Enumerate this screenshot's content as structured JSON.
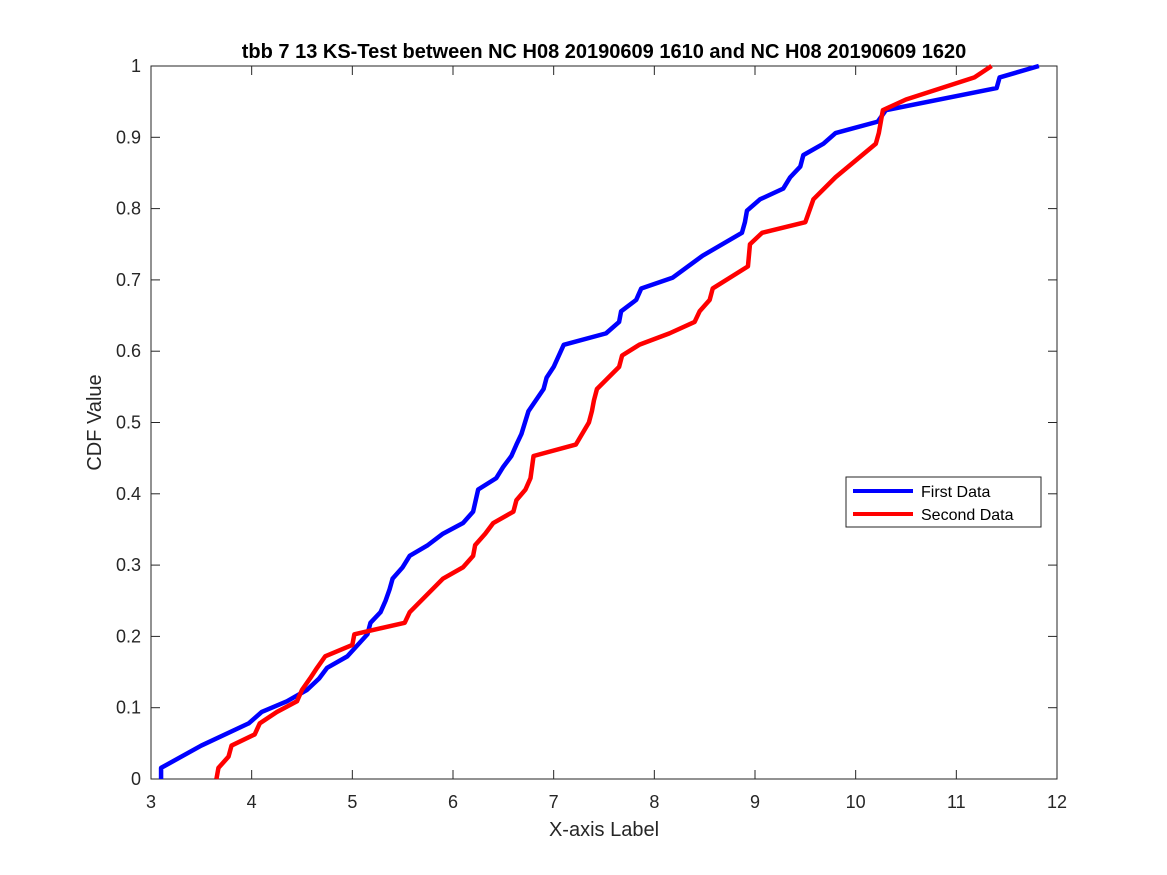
{
  "chart_data": {
    "type": "line",
    "title": "tbb 7 13 KS-Test between NC H08 20190609 1610 and NC H08 20190609 1620",
    "xlabel": "X-axis Label",
    "ylabel": "CDF Value",
    "xlim": [
      3,
      12
    ],
    "ylim": [
      0,
      1
    ],
    "xticks": [
      "3",
      "4",
      "5",
      "6",
      "7",
      "8",
      "9",
      "10",
      "11",
      "12"
    ],
    "yticks": [
      "0",
      "0.1",
      "0.2",
      "0.3",
      "0.4",
      "0.5",
      "0.6",
      "0.7",
      "0.8",
      "0.9",
      "1"
    ],
    "grid": false,
    "legend_position": "right",
    "series": [
      {
        "name": "First Data",
        "color": "#0000ff",
        "points": [
          [
            3.1,
            0.0
          ],
          [
            3.1,
            0.0156
          ],
          [
            3.5,
            0.0469
          ],
          [
            3.97,
            0.078
          ],
          [
            4.1,
            0.094
          ],
          [
            4.35,
            0.109
          ],
          [
            4.55,
            0.125
          ],
          [
            4.67,
            0.141
          ],
          [
            4.75,
            0.156
          ],
          [
            4.95,
            0.172
          ],
          [
            5.15,
            0.203
          ],
          [
            5.18,
            0.219
          ],
          [
            5.28,
            0.234
          ],
          [
            5.33,
            0.25
          ],
          [
            5.37,
            0.266
          ],
          [
            5.4,
            0.281
          ],
          [
            5.5,
            0.297
          ],
          [
            5.57,
            0.313
          ],
          [
            5.75,
            0.328
          ],
          [
            5.9,
            0.344
          ],
          [
            6.1,
            0.359
          ],
          [
            6.2,
            0.375
          ],
          [
            6.25,
            0.406
          ],
          [
            6.43,
            0.422
          ],
          [
            6.5,
            0.438
          ],
          [
            6.58,
            0.453
          ],
          [
            6.63,
            0.469
          ],
          [
            6.68,
            0.484
          ],
          [
            6.75,
            0.516
          ],
          [
            6.9,
            0.547
          ],
          [
            6.93,
            0.563
          ],
          [
            7.0,
            0.578
          ],
          [
            7.1,
            0.609
          ],
          [
            7.52,
            0.625
          ],
          [
            7.65,
            0.641
          ],
          [
            7.67,
            0.656
          ],
          [
            7.82,
            0.672
          ],
          [
            7.87,
            0.688
          ],
          [
            8.18,
            0.703
          ],
          [
            8.48,
            0.734
          ],
          [
            8.87,
            0.766
          ],
          [
            8.9,
            0.781
          ],
          [
            8.92,
            0.797
          ],
          [
            9.05,
            0.813
          ],
          [
            9.28,
            0.828
          ],
          [
            9.35,
            0.844
          ],
          [
            9.45,
            0.859
          ],
          [
            9.48,
            0.875
          ],
          [
            9.68,
            0.891
          ],
          [
            9.8,
            0.906
          ],
          [
            10.22,
            0.922
          ],
          [
            10.3,
            0.938
          ],
          [
            11.4,
            0.969
          ],
          [
            11.43,
            0.984
          ],
          [
            11.82,
            1.0
          ]
        ]
      },
      {
        "name": "Second Data",
        "color": "#ff0000",
        "points": [
          [
            3.65,
            0.0
          ],
          [
            3.67,
            0.0156
          ],
          [
            3.77,
            0.0313
          ],
          [
            3.8,
            0.0469
          ],
          [
            4.03,
            0.0625
          ],
          [
            4.08,
            0.078
          ],
          [
            4.25,
            0.094
          ],
          [
            4.45,
            0.109
          ],
          [
            4.5,
            0.125
          ],
          [
            4.58,
            0.141
          ],
          [
            4.65,
            0.156
          ],
          [
            4.73,
            0.172
          ],
          [
            5.0,
            0.188
          ],
          [
            5.02,
            0.203
          ],
          [
            5.52,
            0.219
          ],
          [
            5.57,
            0.234
          ],
          [
            5.9,
            0.281
          ],
          [
            6.1,
            0.297
          ],
          [
            6.2,
            0.313
          ],
          [
            6.22,
            0.328
          ],
          [
            6.32,
            0.344
          ],
          [
            6.4,
            0.359
          ],
          [
            6.6,
            0.375
          ],
          [
            6.63,
            0.391
          ],
          [
            6.72,
            0.406
          ],
          [
            6.77,
            0.422
          ],
          [
            6.8,
            0.453
          ],
          [
            7.22,
            0.469
          ],
          [
            7.35,
            0.5
          ],
          [
            7.38,
            0.516
          ],
          [
            7.4,
            0.531
          ],
          [
            7.43,
            0.547
          ],
          [
            7.65,
            0.578
          ],
          [
            7.68,
            0.594
          ],
          [
            7.85,
            0.609
          ],
          [
            8.15,
            0.625
          ],
          [
            8.4,
            0.641
          ],
          [
            8.45,
            0.656
          ],
          [
            8.55,
            0.672
          ],
          [
            8.58,
            0.688
          ],
          [
            8.93,
            0.719
          ],
          [
            8.95,
            0.75
          ],
          [
            9.07,
            0.766
          ],
          [
            9.5,
            0.781
          ],
          [
            9.58,
            0.813
          ],
          [
            9.8,
            0.844
          ],
          [
            10.2,
            0.891
          ],
          [
            10.23,
            0.906
          ],
          [
            10.27,
            0.938
          ],
          [
            10.5,
            0.953
          ],
          [
            11.18,
            0.984
          ],
          [
            11.35,
            1.0
          ]
        ]
      }
    ]
  }
}
